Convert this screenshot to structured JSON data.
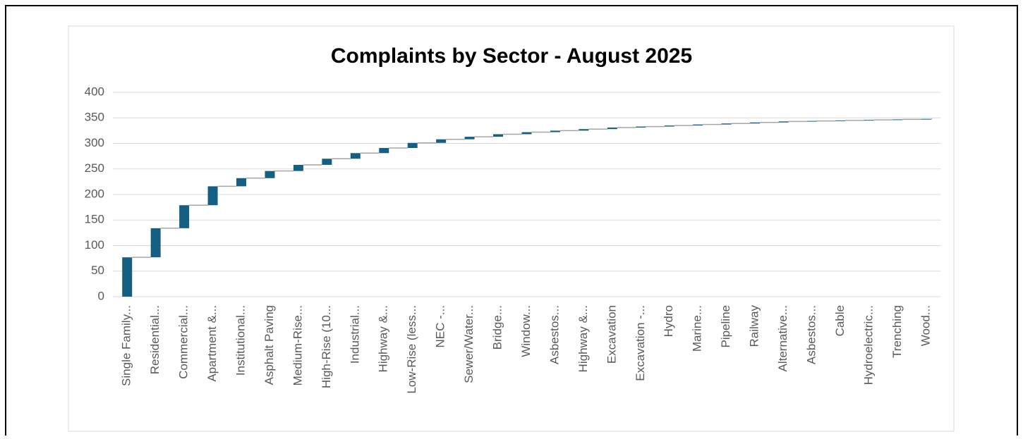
{
  "chart_data": {
    "type": "waterfall",
    "title": "Complaints by Sector - August 2025",
    "categories": [
      "Single Family...",
      "Residential...",
      "Commercial...",
      "Apartment &...",
      "Institutional...",
      "Asphalt Paving",
      "Medium-Rise...",
      "High-Rise (10...",
      "Industrial...",
      "Highway &...",
      "Low-Rise (less...",
      "NEC -...",
      "Sewer/Water...",
      "Bridge...",
      "Window...",
      "Asbestos...",
      "Highway &...",
      "Excavation",
      "Excavation -...",
      "Hydro",
      "Marine...",
      "Pipeline",
      "Railway",
      "Alternative...",
      "Asbestos...",
      "Cable",
      "Hydroelectric...",
      "Trenching",
      "Wood..."
    ],
    "values": [
      77,
      57,
      45,
      37,
      16,
      14,
      12,
      12,
      11,
      10,
      10,
      7,
      5,
      5,
      4,
      3,
      3,
      3,
      2,
      2,
      2,
      2,
      2,
      2,
      1,
      1,
      1,
      1,
      1
    ],
    "color": "#156082",
    "ylim": [
      0,
      400
    ],
    "yticks": [
      0,
      50,
      100,
      150,
      200,
      250,
      300,
      350,
      400
    ],
    "grid": true
  }
}
